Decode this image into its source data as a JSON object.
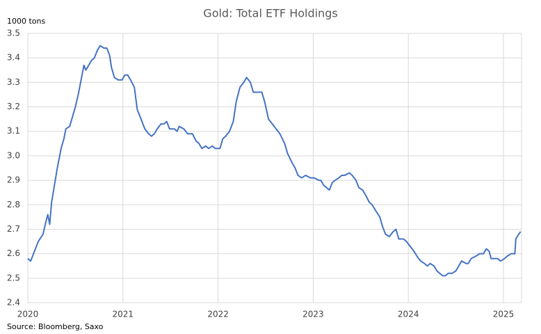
{
  "chart_data": {
    "type": "line",
    "title": "Gold: Total ETF Holdings",
    "y_label": "1000 tons",
    "source": "Source: Bloomberg, Saxo",
    "x": [
      2020.0,
      2020.03,
      2020.07,
      2020.11,
      2020.16,
      2020.19,
      2020.21,
      2020.23,
      2020.25,
      2020.28,
      2020.31,
      2020.35,
      2020.38,
      2020.4,
      2020.44,
      2020.47,
      2020.5,
      2020.53,
      2020.56,
      2020.59,
      2020.61,
      2020.64,
      2020.67,
      2020.7,
      2020.73,
      2020.76,
      2020.8,
      2020.83,
      2020.86,
      2020.88,
      2020.91,
      2020.95,
      2020.99,
      2021.02,
      2021.05,
      2021.08,
      2021.12,
      2021.15,
      2021.2,
      2021.23,
      2021.27,
      2021.3,
      2021.33,
      2021.36,
      2021.4,
      2021.43,
      2021.46,
      2021.49,
      2021.54,
      2021.57,
      2021.59,
      2021.64,
      2021.68,
      2021.73,
      2021.77,
      2021.8,
      2021.83,
      2021.87,
      2021.9,
      2021.94,
      2021.97,
      2022.02,
      2022.05,
      2022.08,
      2022.12,
      2022.16,
      2022.19,
      2022.23,
      2022.27,
      2022.3,
      2022.34,
      2022.37,
      2022.4,
      2022.46,
      2022.49,
      2022.53,
      2022.57,
      2022.61,
      2022.65,
      2022.7,
      2022.73,
      2022.78,
      2022.81,
      2022.84,
      2022.88,
      2022.92,
      2022.97,
      2023.01,
      2023.06,
      2023.08,
      2023.11,
      2023.14,
      2023.17,
      2023.2,
      2023.23,
      2023.27,
      2023.3,
      2023.33,
      2023.38,
      2023.41,
      2023.45,
      2023.48,
      2023.52,
      2023.55,
      2023.59,
      2023.62,
      2023.65,
      2023.7,
      2023.73,
      2023.76,
      2023.8,
      2023.84,
      2023.87,
      2023.9,
      2023.95,
      2023.98,
      2024.02,
      2024.06,
      2024.09,
      2024.13,
      2024.17,
      2024.2,
      2024.23,
      2024.27,
      2024.3,
      2024.33,
      2024.36,
      2024.39,
      2024.42,
      2024.46,
      2024.5,
      2024.53,
      2024.56,
      2024.61,
      2024.63,
      2024.66,
      2024.71,
      2024.75,
      2024.79,
      2024.82,
      2024.85,
      2024.87,
      2024.91,
      2024.94,
      2024.97,
      2025.01,
      2025.04,
      2025.08,
      2025.12,
      2025.13,
      2025.16,
      2025.18
    ],
    "values": [
      2.58,
      2.57,
      2.61,
      2.65,
      2.68,
      2.73,
      2.76,
      2.72,
      2.81,
      2.88,
      2.95,
      3.03,
      3.07,
      3.11,
      3.12,
      3.16,
      3.2,
      3.25,
      3.31,
      3.37,
      3.35,
      3.37,
      3.39,
      3.4,
      3.43,
      3.45,
      3.44,
      3.44,
      3.41,
      3.36,
      3.32,
      3.31,
      3.31,
      3.33,
      3.33,
      3.31,
      3.28,
      3.19,
      3.14,
      3.11,
      3.09,
      3.08,
      3.09,
      3.11,
      3.13,
      3.13,
      3.14,
      3.11,
      3.11,
      3.1,
      3.12,
      3.11,
      3.09,
      3.09,
      3.06,
      3.05,
      3.03,
      3.04,
      3.03,
      3.04,
      3.03,
      3.03,
      3.07,
      3.08,
      3.1,
      3.14,
      3.22,
      3.28,
      3.3,
      3.32,
      3.3,
      3.26,
      3.26,
      3.26,
      3.22,
      3.15,
      3.13,
      3.11,
      3.09,
      3.05,
      3.01,
      2.97,
      2.95,
      2.92,
      2.91,
      2.92,
      2.91,
      2.91,
      2.9,
      2.9,
      2.88,
      2.87,
      2.86,
      2.89,
      2.9,
      2.91,
      2.92,
      2.92,
      2.93,
      2.92,
      2.9,
      2.87,
      2.86,
      2.84,
      2.81,
      2.8,
      2.78,
      2.75,
      2.71,
      2.68,
      2.67,
      2.69,
      2.7,
      2.66,
      2.66,
      2.65,
      2.63,
      2.61,
      2.59,
      2.57,
      2.56,
      2.55,
      2.56,
      2.55,
      2.53,
      2.52,
      2.51,
      2.51,
      2.52,
      2.52,
      2.53,
      2.55,
      2.57,
      2.56,
      2.56,
      2.58,
      2.59,
      2.6,
      2.6,
      2.62,
      2.61,
      2.58,
      2.58,
      2.58,
      2.57,
      2.58,
      2.59,
      2.6,
      2.6,
      2.66,
      2.68,
      2.69
    ],
    "color": "#4472c4",
    "xlim": [
      2020,
      2025.19
    ],
    "xticks": [
      2020,
      2021,
      2022,
      2023,
      2024,
      2025
    ],
    "ylim": [
      2.4,
      3.5
    ],
    "yticks": [
      2.4,
      2.5,
      2.6,
      2.7,
      2.8,
      2.9,
      {
        "value": 3,
        "label": "3.0"
      },
      3.1,
      3.2,
      3.3,
      3.4,
      3.5
    ],
    "grid": true
  }
}
